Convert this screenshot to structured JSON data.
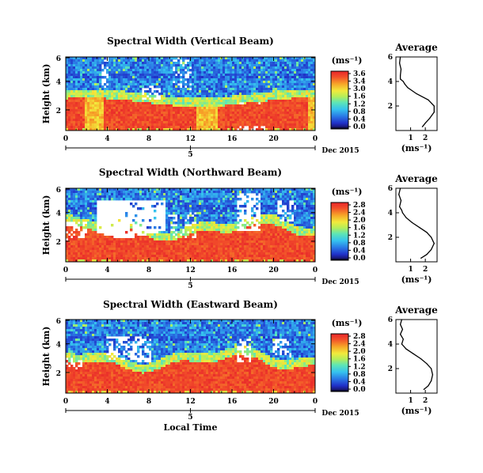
{
  "chart_data": [
    {
      "type": "heatmap",
      "title": "Spectral Width (Vertical Beam)",
      "ylabel": "Height (km)",
      "xlabel": "",
      "x_ticks": [
        "0",
        "4",
        "8",
        "12",
        "16",
        "20",
        "0"
      ],
      "y_ticks": [
        "6",
        "4",
        "2"
      ],
      "date_marker": "5",
      "date_label": "Dec 2015",
      "colorbar": {
        "unit": "(ms⁻¹)",
        "ticks": [
          "3.6",
          "3.4",
          "3.0",
          "1.6",
          "1.2",
          "0.8",
          "0.4",
          "0.0"
        ],
        "range": [
          0,
          3.6
        ]
      },
      "average": {
        "title": "Average",
        "xlabel": "(ms⁻¹)",
        "x_ticks": [
          "1",
          "2"
        ],
        "y_ticks": [
          "6",
          "4",
          "2"
        ],
        "profile": [
          {
            "h": 6.0,
            "w": 0.3
          },
          {
            "h": 5.5,
            "w": 0.25
          },
          {
            "h": 5.0,
            "w": 0.35
          },
          {
            "h": 4.5,
            "w": 0.3
          },
          {
            "h": 4.2,
            "w": 0.3
          },
          {
            "h": 4.0,
            "w": 0.5
          },
          {
            "h": 3.8,
            "w": 0.6
          },
          {
            "h": 3.5,
            "w": 0.8
          },
          {
            "h": 3.0,
            "w": 1.4
          },
          {
            "h": 2.5,
            "w": 2.2
          },
          {
            "h": 2.0,
            "w": 2.6
          },
          {
            "h": 1.5,
            "w": 2.6
          },
          {
            "h": 1.0,
            "w": 2.3
          },
          {
            "h": 0.6,
            "w": 2.0
          },
          {
            "h": 0.3,
            "w": 1.8
          }
        ]
      }
    },
    {
      "type": "heatmap",
      "title": "Spectral Width (Northward Beam)",
      "ylabel": "Height (km)",
      "xlabel": "",
      "x_ticks": [
        "0",
        "4",
        "8",
        "12",
        "16",
        "20",
        "0"
      ],
      "y_ticks": [
        "6",
        "4",
        "2"
      ],
      "date_marker": "5",
      "date_label": "Dec 2015",
      "colorbar": {
        "unit": "(ms⁻¹)",
        "ticks": [
          "2.8",
          "2.4",
          "2.0",
          "1.6",
          "1.2",
          "0.8",
          "0.4",
          "0.0"
        ],
        "range": [
          0,
          2.8
        ]
      },
      "average": {
        "title": "Average",
        "xlabel": "(ms⁻¹)",
        "x_ticks": [
          "1",
          "2"
        ],
        "y_ticks": [
          "6",
          "4",
          "2"
        ],
        "profile": [
          {
            "h": 6.0,
            "w": 0.3
          },
          {
            "h": 5.5,
            "w": 0.2
          },
          {
            "h": 5.0,
            "w": 0.35
          },
          {
            "h": 4.5,
            "w": 0.25
          },
          {
            "h": 4.2,
            "w": 0.4
          },
          {
            "h": 4.0,
            "w": 0.45
          },
          {
            "h": 3.6,
            "w": 0.7
          },
          {
            "h": 3.2,
            "w": 1.1
          },
          {
            "h": 2.8,
            "w": 1.6
          },
          {
            "h": 2.4,
            "w": 2.1
          },
          {
            "h": 2.0,
            "w": 2.4
          },
          {
            "h": 1.5,
            "w": 2.6
          },
          {
            "h": 1.0,
            "w": 2.4
          },
          {
            "h": 0.6,
            "w": 2.1
          },
          {
            "h": 0.3,
            "w": 1.7
          }
        ]
      }
    },
    {
      "type": "heatmap",
      "title": "Spectral Width (Eastward Beam)",
      "ylabel": "Height (km)",
      "xlabel": "Local Time",
      "x_ticks": [
        "0",
        "4",
        "8",
        "12",
        "16",
        "20",
        "0"
      ],
      "y_ticks": [
        "6",
        "4",
        "2"
      ],
      "date_marker": "5",
      "date_label": "Dec 2015",
      "colorbar": {
        "unit": "(ms⁻¹)",
        "ticks": [
          "2.8",
          "2.4",
          "2.0",
          "1.6",
          "1.2",
          "0.8",
          "0.4",
          "0.0"
        ],
        "range": [
          0,
          2.8
        ]
      },
      "average": {
        "title": "Average",
        "xlabel": "(ms⁻¹)",
        "x_ticks": [
          "1",
          "2"
        ],
        "y_ticks": [
          "6",
          "4",
          "2"
        ],
        "profile": [
          {
            "h": 6.0,
            "w": 0.4
          },
          {
            "h": 5.6,
            "w": 0.3
          },
          {
            "h": 5.2,
            "w": 0.45
          },
          {
            "h": 4.8,
            "w": 0.3
          },
          {
            "h": 4.4,
            "w": 0.5
          },
          {
            "h": 4.0,
            "w": 0.4
          },
          {
            "h": 3.6,
            "w": 0.7
          },
          {
            "h": 3.2,
            "w": 1.2
          },
          {
            "h": 2.8,
            "w": 1.7
          },
          {
            "h": 2.4,
            "w": 2.1
          },
          {
            "h": 2.0,
            "w": 2.4
          },
          {
            "h": 1.5,
            "w": 2.5
          },
          {
            "h": 1.0,
            "w": 2.4
          },
          {
            "h": 0.6,
            "w": 2.2
          },
          {
            "h": 0.3,
            "w": 1.9
          }
        ]
      }
    }
  ]
}
